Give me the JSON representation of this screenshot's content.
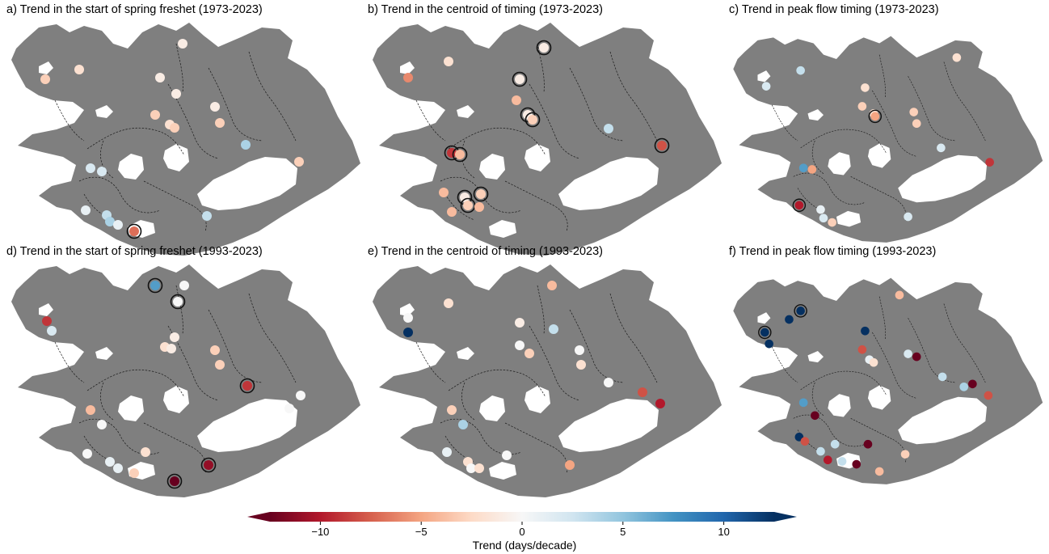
{
  "panels": [
    {
      "title": "a) Trend in the start of spring freshet (1973-2023)",
      "stations": [
        [
          48,
          74,
          -3,
          0
        ],
        [
          90,
          62,
          -2,
          0
        ],
        [
          190,
          72,
          -1,
          0
        ],
        [
          210,
          92,
          -1,
          0
        ],
        [
          184,
          118,
          -3,
          0
        ],
        [
          202,
          130,
          -2,
          0
        ],
        [
          208,
          134,
          -3,
          0
        ],
        [
          258,
          108,
          -1,
          0
        ],
        [
          264,
          128,
          -3,
          0
        ],
        [
          296,
          155,
          4,
          0
        ],
        [
          362,
          176,
          -3,
          0
        ],
        [
          104,
          184,
          2,
          0
        ],
        [
          118,
          188,
          2,
          0
        ],
        [
          98,
          236,
          1,
          0
        ],
        [
          124,
          242,
          3,
          0
        ],
        [
          128,
          250,
          4,
          0
        ],
        [
          138,
          254,
          1,
          0
        ],
        [
          158,
          262,
          -7,
          1
        ],
        [
          248,
          243,
          3,
          0
        ],
        [
          218,
          30,
          -1,
          0
        ]
      ]
    },
    {
      "title": "b) Trend in the centroid of timing (1973-2023)",
      "stations": [
        [
          50,
          72,
          -6,
          0
        ],
        [
          100,
          52,
          -2,
          0
        ],
        [
          218,
          35,
          -1,
          1
        ],
        [
          188,
          74,
          -1,
          1
        ],
        [
          184,
          100,
          -4,
          0
        ],
        [
          198,
          118,
          -1,
          1
        ],
        [
          204,
          124,
          -3,
          1
        ],
        [
          298,
          135,
          3,
          0
        ],
        [
          364,
          156,
          -8,
          1
        ],
        [
          104,
          165,
          -9,
          1
        ],
        [
          114,
          167,
          -4,
          1
        ],
        [
          94,
          214,
          -4,
          0
        ],
        [
          120,
          220,
          -1,
          1
        ],
        [
          140,
          216,
          -3,
          1
        ],
        [
          124,
          230,
          -3,
          1
        ],
        [
          138,
          232,
          -4,
          0
        ],
        [
          104,
          238,
          -4,
          0
        ]
      ]
    },
    {
      "title": "c) Trend in peak flow timing (1973-2023)",
      "stations": [
        [
          52,
          74,
          2,
          0
        ],
        [
          100,
          52,
          3,
          0
        ],
        [
          190,
          76,
          -2,
          0
        ],
        [
          186,
          102,
          -3,
          0
        ],
        [
          202,
          112,
          -2,
          0
        ],
        [
          204,
          116,
          -5,
          1
        ],
        [
          258,
          110,
          -3,
          0
        ],
        [
          262,
          126,
          -3,
          0
        ],
        [
          296,
          160,
          2,
          0
        ],
        [
          364,
          180,
          -9,
          0
        ],
        [
          104,
          188,
          7,
          0
        ],
        [
          116,
          190,
          -5,
          0
        ],
        [
          98,
          240,
          -10,
          1
        ],
        [
          128,
          246,
          1,
          0
        ],
        [
          132,
          258,
          2,
          0
        ],
        [
          144,
          264,
          -3,
          0
        ],
        [
          250,
          256,
          2,
          0
        ],
        [
          318,
          34,
          -2,
          0
        ]
      ]
    },
    {
      "title": "d) Trend in the start of spring freshet (1993-2023)",
      "stations": [
        [
          50,
          74,
          -9,
          0
        ],
        [
          56,
          86,
          2,
          0
        ],
        [
          184,
          30,
          7,
          1
        ],
        [
          212,
          50,
          0,
          1
        ],
        [
          208,
          94,
          -1,
          0
        ],
        [
          196,
          106,
          -2,
          0
        ],
        [
          204,
          108,
          -1,
          0
        ],
        [
          258,
          110,
          -3,
          0
        ],
        [
          264,
          128,
          -3,
          0
        ],
        [
          298,
          154,
          -9,
          1
        ],
        [
          364,
          166,
          0,
          0
        ],
        [
          350,
          182,
          0,
          0
        ],
        [
          104,
          184,
          -4,
          0
        ],
        [
          118,
          202,
          0,
          0
        ],
        [
          100,
          238,
          0,
          0
        ],
        [
          128,
          248,
          1,
          0
        ],
        [
          138,
          256,
          1,
          0
        ],
        [
          158,
          262,
          -3,
          0
        ],
        [
          172,
          236,
          -2,
          0
        ],
        [
          208,
          272,
          -15,
          1
        ],
        [
          250,
          252,
          -11,
          1
        ],
        [
          220,
          30,
          0,
          0
        ]
      ]
    },
    {
      "title": "e) Trend in the centroid of timing (1993-2023)",
      "stations": [
        [
          50,
          88,
          15,
          0
        ],
        [
          50,
          70,
          0,
          0
        ],
        [
          100,
          52,
          -2,
          0
        ],
        [
          188,
          76,
          -1,
          0
        ],
        [
          188,
          104,
          0,
          0
        ],
        [
          200,
          114,
          -3,
          0
        ],
        [
          230,
          84,
          3,
          0
        ],
        [
          262,
          110,
          0,
          0
        ],
        [
          264,
          128,
          -2,
          0
        ],
        [
          298,
          150,
          0,
          0
        ],
        [
          340,
          162,
          -8,
          0
        ],
        [
          362,
          176,
          -10,
          0
        ],
        [
          104,
          184,
          -3,
          0
        ],
        [
          118,
          202,
          4,
          0
        ],
        [
          98,
          236,
          1,
          0
        ],
        [
          124,
          248,
          -2,
          0
        ],
        [
          128,
          256,
          0,
          0
        ],
        [
          138,
          256,
          -2,
          0
        ],
        [
          250,
          252,
          -5,
          0
        ],
        [
          172,
          240,
          0,
          0
        ],
        [
          228,
          30,
          -4,
          0
        ]
      ]
    },
    {
      "title": "f) Trend in peak flow timing (1993-2023)",
      "stations": [
        [
          50,
          80,
          15,
          1
        ],
        [
          56,
          96,
          15,
          0
        ],
        [
          100,
          50,
          15,
          1
        ],
        [
          84,
          62,
          15,
          0
        ],
        [
          190,
          78,
          15,
          0
        ],
        [
          186,
          104,
          -8,
          0
        ],
        [
          196,
          118,
          1,
          0
        ],
        [
          202,
          122,
          -2,
          0
        ],
        [
          262,
          114,
          -14,
          0
        ],
        [
          298,
          142,
          3,
          0
        ],
        [
          340,
          152,
          -14,
          0
        ],
        [
          362,
          168,
          -8,
          0
        ],
        [
          104,
          178,
          7,
          0
        ],
        [
          120,
          196,
          -14,
          0
        ],
        [
          98,
          226,
          15,
          0
        ],
        [
          106,
          232,
          -8,
          0
        ],
        [
          128,
          246,
          3,
          0
        ],
        [
          138,
          258,
          -10,
          0
        ],
        [
          158,
          260,
          3,
          0
        ],
        [
          178,
          264,
          -14,
          0
        ],
        [
          210,
          274,
          -4,
          0
        ],
        [
          246,
          250,
          -3,
          0
        ],
        [
          328,
          156,
          4,
          0
        ],
        [
          250,
          110,
          2,
          0
        ],
        [
          238,
          28,
          -4,
          0
        ],
        [
          148,
          236,
          3,
          0
        ],
        [
          194,
          236,
          -14,
          0
        ]
      ]
    }
  ],
  "colorbar": {
    "label": "Trend (days/decade)",
    "ticks": [
      {
        "v": -10,
        "t": "−10"
      },
      {
        "v": -5,
        "t": "−5"
      },
      {
        "v": 0,
        "t": "0"
      },
      {
        "v": 5,
        "t": "5"
      },
      {
        "v": 10,
        "t": "10"
      }
    ],
    "vmin": -12.5,
    "vmax": 12.5
  },
  "colors": {
    "land": "#7f7f7f",
    "glacier": "#ffffff",
    "significance_ring": "#111111",
    "ramp": [
      "#67001f",
      "#b2182b",
      "#d6604d",
      "#f4a582",
      "#fddbc7",
      "#f7f7f7",
      "#d1e5f0",
      "#92c5de",
      "#4393c3",
      "#2166ac",
      "#053061"
    ]
  }
}
